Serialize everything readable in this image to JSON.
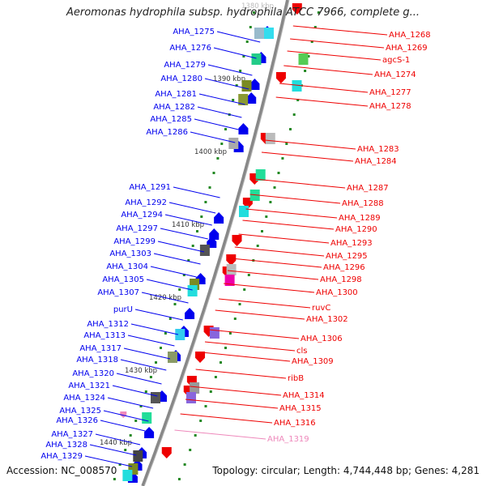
{
  "title": "Aeromonas hydrophila subsp. hydrophila ATCC 7966, complete g...",
  "footer": {
    "accession": "Accession: NC_008570",
    "topology": "Topology: circular; Length: 4,744,448 bp; Genes: 4,281"
  },
  "colors": {
    "forward": "#0000ee",
    "reverse": "#ee0000",
    "rna": "#ee88bb",
    "backbone": "#888888",
    "tick": "#228822"
  },
  "ruler": [
    {
      "label": "1380 kbp"
    },
    {
      "label": "1390 kbp"
    },
    {
      "label": "1400 kbp"
    },
    {
      "label": "1410 kbp"
    },
    {
      "label": "1420 kbp"
    },
    {
      "label": "1430 kbp"
    },
    {
      "label": "1440 kbp"
    }
  ],
  "genes_forward": [
    {
      "name": "AHA_1275",
      "color": "#0000ee"
    },
    {
      "name": "AHA_1276",
      "color": "#0000ee"
    },
    {
      "name": "AHA_1279",
      "color": "#0000ee"
    },
    {
      "name": "AHA_1280",
      "color": "#0000ee"
    },
    {
      "name": "AHA_1281",
      "color": "#0000ee"
    },
    {
      "name": "AHA_1282",
      "color": "#0000ee"
    },
    {
      "name": "AHA_1285",
      "color": "#0000ee"
    },
    {
      "name": "AHA_1286",
      "color": "#0000ee"
    },
    {
      "name": "AHA_1291",
      "color": "#0000ee"
    },
    {
      "name": "AHA_1292",
      "color": "#0000ee"
    },
    {
      "name": "AHA_1294",
      "color": "#0000ee"
    },
    {
      "name": "AHA_1297",
      "color": "#0000ee"
    },
    {
      "name": "AHA_1299",
      "color": "#0000ee"
    },
    {
      "name": "AHA_1303",
      "color": "#0000ee"
    },
    {
      "name": "AHA_1304",
      "color": "#0000ee"
    },
    {
      "name": "AHA_1305",
      "color": "#0000ee"
    },
    {
      "name": "AHA_1307",
      "color": "#0000ee"
    },
    {
      "name": "purU",
      "color": "#0000ee"
    },
    {
      "name": "AHA_1312",
      "color": "#0000ee"
    },
    {
      "name": "AHA_1313",
      "color": "#0000ee"
    },
    {
      "name": "AHA_1317",
      "color": "#0000ee"
    },
    {
      "name": "AHA_1318",
      "color": "#0000ee"
    },
    {
      "name": "AHA_1320",
      "color": "#0000ee"
    },
    {
      "name": "AHA_1321",
      "color": "#0000ee"
    },
    {
      "name": "AHA_1324",
      "color": "#0000ee"
    },
    {
      "name": "AHA_1325",
      "color": "#0000ee"
    },
    {
      "name": "AHA_1326",
      "color": "#0000ee"
    },
    {
      "name": "AHA_1327",
      "color": "#0000ee"
    },
    {
      "name": "AHA_1328",
      "color": "#0000ee"
    },
    {
      "name": "AHA_1329",
      "color": "#0000ee"
    }
  ],
  "genes_reverse": [
    {
      "name": "AHA_1268",
      "color": "#ee0000"
    },
    {
      "name": "AHA_1269",
      "color": "#ee0000"
    },
    {
      "name": "agcS-1",
      "color": "#ee0000"
    },
    {
      "name": "AHA_1274",
      "color": "#ee0000"
    },
    {
      "name": "AHA_1277",
      "color": "#ee0000"
    },
    {
      "name": "AHA_1278",
      "color": "#ee0000"
    },
    {
      "name": "AHA_1283",
      "color": "#ee0000"
    },
    {
      "name": "AHA_1284",
      "color": "#ee0000"
    },
    {
      "name": "AHA_1287",
      "color": "#ee0000"
    },
    {
      "name": "AHA_1288",
      "color": "#ee0000"
    },
    {
      "name": "AHA_1289",
      "color": "#ee0000"
    },
    {
      "name": "AHA_1290",
      "color": "#ee0000"
    },
    {
      "name": "AHA_1293",
      "color": "#ee0000"
    },
    {
      "name": "AHA_1295",
      "color": "#ee0000"
    },
    {
      "name": "AHA_1296",
      "color": "#ee0000"
    },
    {
      "name": "AHA_1298",
      "color": "#ee0000"
    },
    {
      "name": "AHA_1300",
      "color": "#ee0000"
    },
    {
      "name": "ruvC",
      "color": "#ee0000"
    },
    {
      "name": "AHA_1302",
      "color": "#ee0000"
    },
    {
      "name": "AHA_1306",
      "color": "#ee0000"
    },
    {
      "name": "cls",
      "color": "#ee0000"
    },
    {
      "name": "AHA_1309",
      "color": "#ee0000"
    },
    {
      "name": "ribB",
      "color": "#ee0000"
    },
    {
      "name": "AHA_1314",
      "color": "#ee0000"
    },
    {
      "name": "AHA_1315",
      "color": "#ee0000"
    },
    {
      "name": "AHA_1316",
      "color": "#ee0000"
    },
    {
      "name": "AHA_1319",
      "color": "#ee88bb"
    }
  ]
}
